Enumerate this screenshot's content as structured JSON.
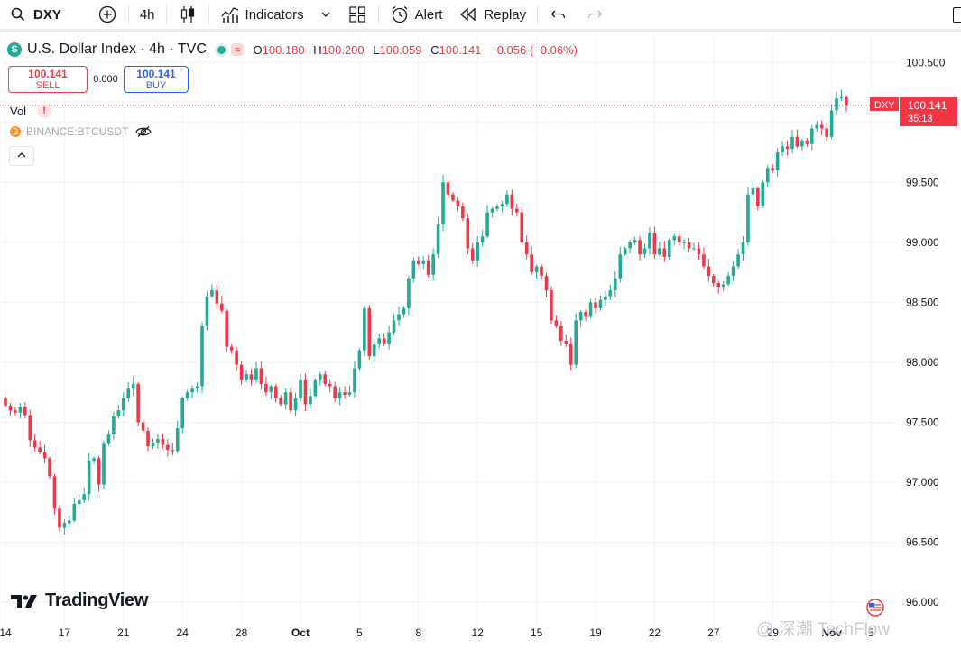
{
  "toolbar": {
    "symbol": "DXY",
    "interval": "4h",
    "indicators_label": "Indicators",
    "alert_label": "Alert",
    "replay_label": "Replay"
  },
  "legend": {
    "title": "U.S. Dollar Index · 4h · TVC",
    "o_key": "O",
    "o": "100.180",
    "h_key": "H",
    "h": "100.200",
    "l_key": "L",
    "l": "100.059",
    "c_key": "C",
    "c": "100.141",
    "change": "−0.056 (−0.06%)",
    "wave_glyph": "≈"
  },
  "trade": {
    "sell_price": "100.141",
    "sell_label": "SELL",
    "spread": "0.000",
    "buy_price": "100.141",
    "buy_label": "BUY"
  },
  "indicators": {
    "vol_label": "Vol",
    "vol_warning": "!",
    "compare_symbol": "BINANCE:BTCUSDT"
  },
  "price_label": {
    "symbol": "DXY",
    "price": "100.141",
    "countdown": "35:13"
  },
  "branding": {
    "logo_text": "TradingView",
    "watermark": "@ 深潮 TechFlow"
  },
  "colors": {
    "up": "#22ab94",
    "down": "#f23645",
    "grid": "#f0f3fa",
    "axis_text": "#131722"
  },
  "icons": [
    "search-icon",
    "plus-circle-icon",
    "candles-icon",
    "indicators-icon",
    "chevron-down-icon",
    "layout-icon",
    "alert-clock-icon",
    "replay-icon",
    "undo-icon",
    "redo-icon",
    "eye-off-icon",
    "chevron-up-icon"
  ],
  "chart_data": {
    "type": "candlestick",
    "ylim": [
      95.85,
      100.72
    ],
    "y_ticks": [
      100.5,
      100.0,
      99.5,
      99.0,
      98.5,
      98.0,
      97.5,
      97.0,
      96.5,
      96.0
    ],
    "y_tick_labels": [
      "100.500",
      "100.000",
      "99.500",
      "99.000",
      "98.500",
      "98.000",
      "97.500",
      "97.000",
      "96.500",
      "96.000"
    ],
    "x_tick_labels": [
      {
        "label": "14",
        "bar": 0
      },
      {
        "label": "17",
        "bar": 12
      },
      {
        "label": "21",
        "bar": 24
      },
      {
        "label": "24",
        "bar": 36
      },
      {
        "label": "28",
        "bar": 48
      },
      {
        "label": "Oct",
        "bar": 60
      },
      {
        "label": "5",
        "bar": 72
      },
      {
        "label": "8",
        "bar": 84
      },
      {
        "label": "12",
        "bar": 96
      },
      {
        "label": "15",
        "bar": 108
      },
      {
        "label": "19",
        "bar": 120
      },
      {
        "label": "22",
        "bar": 132
      },
      {
        "label": "27",
        "bar": 144
      },
      {
        "label": "29",
        "bar": 156
      },
      {
        "label": "Nov",
        "bar": 168
      },
      {
        "label": "5",
        "bar": 176
      }
    ],
    "last_price": 100.141,
    "close": [
      97.64,
      97.6,
      97.58,
      97.63,
      97.56,
      97.35,
      97.29,
      97.25,
      97.2,
      97.05,
      96.78,
      96.62,
      96.66,
      96.68,
      96.82,
      96.85,
      96.9,
      97.18,
      97.2,
      96.98,
      97.32,
      97.4,
      97.55,
      97.6,
      97.7,
      97.78,
      97.82,
      97.5,
      97.43,
      97.3,
      97.33,
      97.36,
      97.31,
      97.27,
      97.26,
      97.45,
      97.7,
      97.75,
      97.78,
      97.8,
      98.3,
      98.55,
      98.6,
      98.49,
      98.43,
      98.13,
      98.1,
      97.98,
      97.85,
      97.9,
      97.85,
      97.95,
      97.82,
      97.75,
      97.8,
      97.7,
      97.65,
      97.75,
      97.6,
      97.7,
      97.85,
      97.65,
      97.72,
      97.85,
      97.9,
      97.82,
      97.8,
      97.7,
      97.75,
      97.73,
      97.75,
      97.95,
      98.1,
      98.45,
      98.05,
      98.15,
      98.2,
      98.15,
      98.25,
      98.35,
      98.4,
      98.45,
      98.7,
      98.85,
      98.82,
      98.85,
      98.73,
      98.9,
      99.15,
      99.5,
      99.4,
      99.35,
      99.3,
      99.2,
      98.95,
      98.85,
      99.0,
      99.05,
      99.25,
      99.28,
      99.3,
      99.32,
      99.4,
      99.28,
      99.25,
      99.0,
      98.9,
      98.75,
      98.8,
      98.72,
      98.6,
      98.35,
      98.3,
      98.18,
      98.15,
      97.98,
      98.35,
      98.42,
      98.38,
      98.5,
      98.45,
      98.52,
      98.55,
      98.6,
      98.7,
      98.9,
      98.95,
      99.0,
      99.02,
      98.9,
      98.95,
      99.08,
      98.9,
      98.95,
      98.88,
      99.02,
      99.05,
      99.0,
      99.0,
      98.95,
      98.95,
      98.9,
      98.8,
      98.72,
      98.66,
      98.63,
      98.65,
      98.72,
      98.8,
      98.9,
      99.0,
      99.4,
      99.45,
      99.3,
      99.5,
      99.62,
      99.6,
      99.75,
      99.8,
      99.78,
      99.88,
      99.8,
      99.85,
      99.82,
      99.95,
      99.98,
      99.95,
      99.88,
      100.1,
      100.2,
      100.21,
      100.14
    ]
  }
}
